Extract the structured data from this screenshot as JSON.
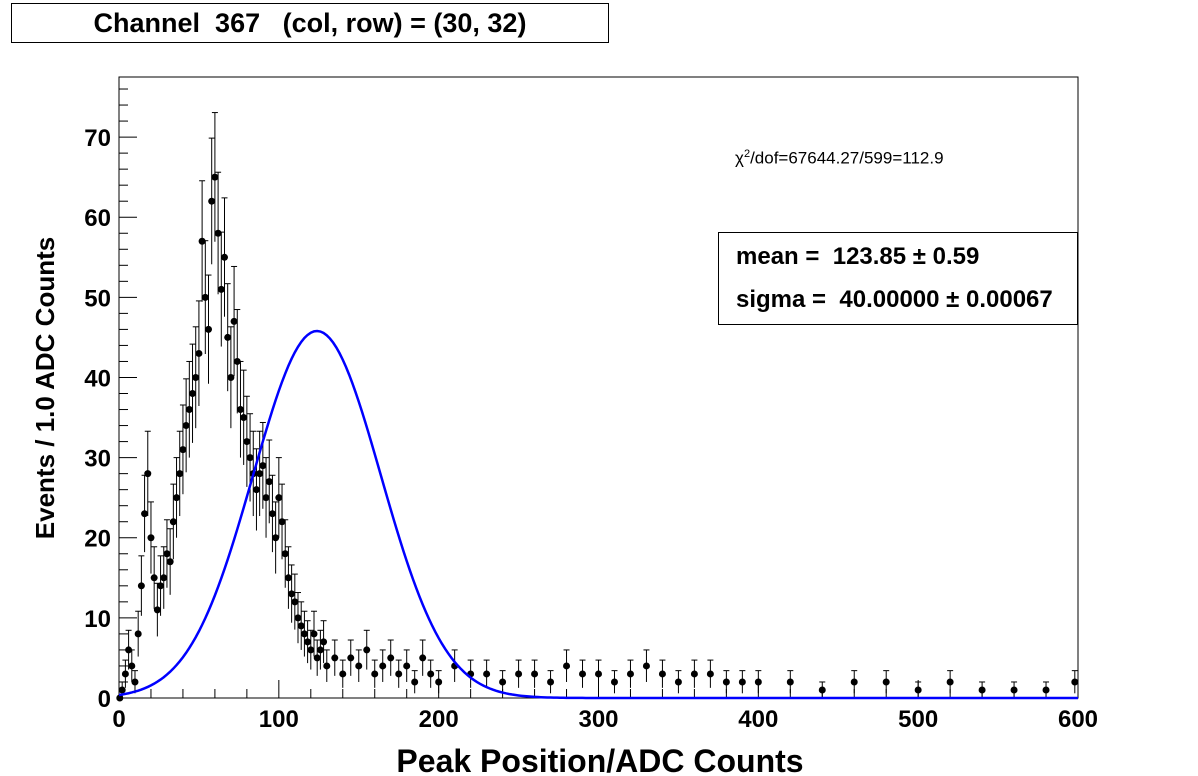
{
  "title": "Channel  367   (col, row) = (30, 32)",
  "fit_info": {
    "chi2_prefix": "χ",
    "chi2_sup": "2",
    "chi2_rest": "/dof=67644.27/599=112.9",
    "mean_text": "mean =  123.85 ± 0.59",
    "sigma_text": "sigma =  40.00000 ± 0.00067"
  },
  "chart_data": {
    "type": "scatter",
    "xlabel": "Peak Position/ADC Counts",
    "ylabel": "Events / 1.0 ADC Counts",
    "xlim": [
      0,
      600
    ],
    "ylim": [
      0,
      77.5
    ],
    "x_ticks": [
      "0",
      "100",
      "200",
      "300",
      "400",
      "500",
      "600"
    ],
    "y_ticks": [
      "0",
      "10",
      "20",
      "30",
      "40",
      "50",
      "60",
      "70"
    ],
    "grid": false,
    "colors": {
      "data": "#000000",
      "fit": "#0000ff"
    },
    "series": [
      {
        "kind": "histogram-points",
        "x": [
          0.5,
          2,
          4,
          6,
          8,
          10,
          12,
          14,
          16,
          18,
          20,
          22,
          24,
          26,
          28,
          30,
          32,
          34,
          36,
          38,
          40,
          42,
          44,
          46,
          48,
          50,
          52,
          54,
          56,
          58,
          60,
          62,
          64,
          66,
          68,
          70,
          72,
          74,
          76,
          78,
          80,
          82,
          84,
          86,
          88,
          90,
          92,
          94,
          96,
          98,
          100,
          102,
          104,
          106,
          108,
          110,
          112,
          114,
          116,
          118,
          120,
          122,
          124,
          126,
          128,
          130,
          135,
          140,
          145,
          150,
          155,
          160,
          165,
          170,
          175,
          180,
          185,
          190,
          195,
          200,
          210,
          220,
          230,
          240,
          250,
          260,
          270,
          280,
          290,
          300,
          310,
          320,
          330,
          340,
          350,
          360,
          370,
          380,
          390,
          400,
          420,
          440,
          460,
          480,
          500,
          520,
          540,
          560,
          580,
          598
        ],
        "values": [
          0,
          1,
          3,
          6,
          4,
          2,
          8,
          14,
          23,
          28,
          20,
          15,
          11,
          14,
          15,
          18,
          17,
          22,
          25,
          28,
          31,
          34,
          36,
          38,
          40,
          43,
          57,
          50,
          46,
          62,
          65,
          58,
          51,
          55,
          45,
          40,
          47,
          42,
          36,
          35,
          32,
          30,
          28,
          26,
          28,
          29,
          25,
          27,
          23,
          20,
          25,
          22,
          18,
          15,
          13,
          12,
          10,
          9,
          8,
          7,
          6,
          8,
          5,
          6,
          7,
          4,
          5,
          3,
          5,
          4,
          6,
          3,
          4,
          5,
          3,
          4,
          2,
          5,
          3,
          2,
          4,
          3,
          3,
          2,
          3,
          3,
          2,
          4,
          3,
          3,
          2,
          3,
          4,
          3,
          2,
          3,
          3,
          2,
          2,
          2,
          2,
          1,
          2,
          2,
          1,
          2,
          1,
          1,
          1,
          2
        ]
      },
      {
        "kind": "gaussian-fit",
        "mean": 123.85,
        "sigma": 40.0,
        "amplitude": 45.8,
        "x_start": 0,
        "x_end": 600
      }
    ]
  }
}
